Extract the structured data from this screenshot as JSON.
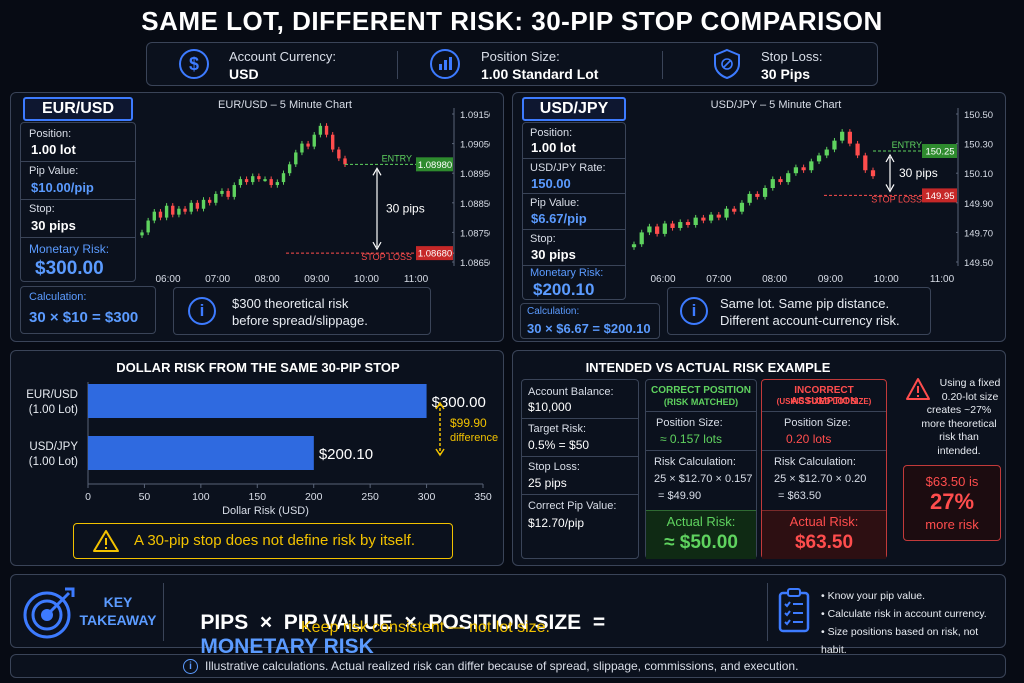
{
  "title": "SAME LOT, DIFFERENT RISK: 30-PIP STOP COMPARISON",
  "header": {
    "currency_label": "Account Currency:",
    "currency_value": "USD",
    "size_label": "Position Size:",
    "size_value": "1.00 Standard Lot",
    "stop_label": "Stop Loss:",
    "stop_value": "30 Pips"
  },
  "eur": {
    "badge": "EUR/USD",
    "chart_title": "EUR/USD – 5 Minute Chart",
    "position_label": "Position:",
    "position_value": "1.00 lot",
    "pip_label": "Pip Value:",
    "pip_value": "$10.00/pip",
    "stop_label": "Stop:",
    "stop_value": "30 pips",
    "risk_label": "Monetary Risk:",
    "risk_value": "$300.00",
    "calc_label": "Calculation:",
    "calc_value": "30 × $10 = $300",
    "note_line1": "$300 theoretical risk",
    "note_line2": "before spread/slippage."
  },
  "jpy": {
    "badge": "USD/JPY",
    "chart_title": "USD/JPY – 5 Minute Chart",
    "position_label": "Position:",
    "position_value": "1.00 lot",
    "rate_label": "USD/JPY Rate:",
    "rate_value": "150.00",
    "pip_label": "Pip Value:",
    "pip_value": "$6.67/pip",
    "stop_label": "Stop:",
    "stop_value": "30 pips",
    "risk_label": "Monetary Risk:",
    "risk_value": "$200.10",
    "calc_label": "Calculation:",
    "calc_value": "30 × $6.67 = $200.10",
    "note_line1": "Same lot. Same pip distance.",
    "note_line2": "Different account-currency risk."
  },
  "bar_section": {
    "title": "DOLLAR RISK FROM THE SAME 30-PIP STOP",
    "difference_value": "$99.90",
    "difference_label": "difference",
    "warning": "A 30-pip stop does not define risk by itself."
  },
  "example": {
    "title": "INTENDED VS ACTUAL RISK EXAMPLE",
    "balance_label": "Account Balance:",
    "balance_value": "$10,000",
    "target_label": "Target Risk:",
    "target_value": "0.5% = $50",
    "stop_label": "Stop Loss:",
    "stop_value": "25 pips",
    "pipv_label": "Correct Pip Value:",
    "pipv_value": "$12.70/pip",
    "correct_h1": "CORRECT POSITION",
    "correct_h2": "(RISK MATCHED)",
    "correct_size_label": "Position Size:",
    "correct_size_value": "≈ 0.157 lots",
    "correct_calc_label": "Risk Calculation:",
    "correct_calc_line1": "25 × $12.70 × 0.157",
    "correct_calc_line2": "= $49.90",
    "correct_actual_label": "Actual Risk:",
    "correct_actual_value": "≈ $50.00",
    "wrong_h1": "INCORRECT ASSUMPTION",
    "wrong_h2": "(USING FIXED LOT SIZE)",
    "wrong_size_label": "Position Size:",
    "wrong_size_value": "0.20 lots",
    "wrong_calc_label": "Risk Calculation:",
    "wrong_calc_line1": "25 × $12.70 × 0.20",
    "wrong_calc_line2": "= $63.50",
    "wrong_actual_label": "Actual Risk:",
    "wrong_actual_value": "$63.50",
    "warn_lines": [
      "Using a fixed",
      "0.20-lot size",
      "creates ~27%",
      "more theoretical",
      "risk than",
      "intended."
    ],
    "callout_line1": "$63.50 is",
    "callout_pct": "27%",
    "callout_line3": "more risk"
  },
  "takeaway": {
    "label1": "KEY",
    "label2": "TAKEAWAY",
    "formula_a": "PIPS  ×  PIP VALUE  ×  POSITION SIZE  =",
    "formula_b": "MONETARY RISK",
    "subline": "Keep risk consistent — not lot size.",
    "bullets": [
      "Know your pip value.",
      "Calculate risk in account currency.",
      "Size positions based on risk, not habit."
    ]
  },
  "footer": "Illustrative calculations. Actual realized risk can differ because of spread, slippage, commissions, and execution.",
  "colors": {
    "blue": "#5b9bff",
    "green": "#5fd35f",
    "red": "#ff4d4d",
    "yellow": "#f2c200",
    "bar": "#2f6ae0"
  },
  "chart_data": [
    {
      "type": "line",
      "title": "EUR/USD – 5 Minute Chart",
      "x_ticks": [
        "06:00",
        "07:00",
        "08:00",
        "09:00",
        "10:00",
        "11:00"
      ],
      "y_ticks": [
        "1.09150",
        "1.09050",
        "1.08950",
        "1.08850",
        "1.08750",
        "1.08650"
      ],
      "ylim": [
        1.0865,
        1.0915
      ],
      "close_series": [
        1.0875,
        1.0879,
        1.0882,
        1.088,
        1.0884,
        1.0881,
        1.0883,
        1.0882,
        1.0885,
        1.0883,
        1.0886,
        1.0885,
        1.0888,
        1.0889,
        1.0887,
        1.0891,
        1.0893,
        1.0892,
        1.0894,
        1.0893,
        1.0893,
        1.0891,
        1.0892,
        1.0895,
        1.0898,
        1.0902,
        1.0905,
        1.0904,
        1.0908,
        1.0911,
        1.0908,
        1.0903,
        1.09,
        1.0898
      ],
      "entry_label": "ENTRY",
      "entry_price": "1.08980",
      "stop_label": "STOP LOSS",
      "stop_price": "1.08680",
      "distance_label": "30 pips"
    },
    {
      "type": "line",
      "title": "USD/JPY – 5 Minute Chart",
      "x_ticks": [
        "06:00",
        "07:00",
        "08:00",
        "09:00",
        "10:00",
        "11:00"
      ],
      "y_ticks": [
        "150.50",
        "150.30",
        "150.10",
        "149.90",
        "149.70",
        "149.50"
      ],
      "ylim": [
        149.5,
        150.5
      ],
      "close_series": [
        149.62,
        149.7,
        149.74,
        149.69,
        149.76,
        149.73,
        149.77,
        149.75,
        149.8,
        149.78,
        149.82,
        149.8,
        149.86,
        149.84,
        149.9,
        149.96,
        149.94,
        150.0,
        150.06,
        150.04,
        150.1,
        150.14,
        150.12,
        150.18,
        150.22,
        150.26,
        150.32,
        150.38,
        150.3,
        150.22,
        150.12,
        150.08
      ],
      "entry_label": "ENTRY",
      "entry_price": "150.25",
      "stop_label": "STOP LOSS",
      "stop_price": "149.95",
      "distance_label": "30 pips"
    },
    {
      "type": "bar",
      "title": "DOLLAR RISK FROM THE SAME 30-PIP STOP",
      "categories": [
        "EUR/USD\n(1.00 Lot)",
        "USD/JPY\n(1.00 Lot)"
      ],
      "values": [
        300,
        200.1
      ],
      "value_labels": [
        "$300.00",
        "$200.10"
      ],
      "xlabel": "Dollar Risk (USD)",
      "xlim": [
        0,
        350
      ],
      "x_ticks": [
        0,
        50,
        100,
        150,
        200,
        250,
        300,
        350
      ]
    }
  ]
}
